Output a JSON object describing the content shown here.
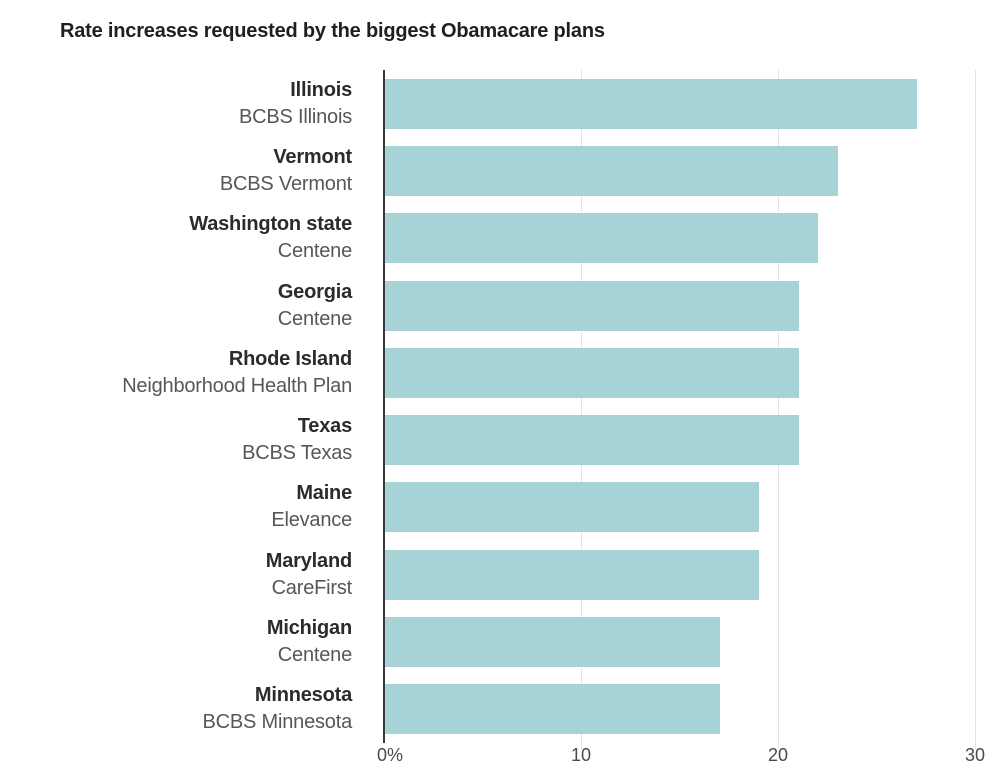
{
  "chart_data": {
    "type": "bar",
    "orientation": "horizontal",
    "title": "Rate increases requested by the biggest Obamacare plans",
    "categories": [
      {
        "state": "Illinois",
        "plan": "BCBS Illinois",
        "value": 27
      },
      {
        "state": "Vermont",
        "plan": "BCBS Vermont",
        "value": 23
      },
      {
        "state": "Washington state",
        "plan": "Centene",
        "value": 22
      },
      {
        "state": "Georgia",
        "plan": "Centene",
        "value": 21
      },
      {
        "state": "Rhode Island",
        "plan": "Neighborhood Health Plan",
        "value": 21
      },
      {
        "state": "Texas",
        "plan": "BCBS Texas",
        "value": 21
      },
      {
        "state": "Maine",
        "plan": "Elevance",
        "value": 19
      },
      {
        "state": "Maryland",
        "plan": "CareFirst",
        "value": 19
      },
      {
        "state": "Michigan",
        "plan": "Centene",
        "value": 17
      },
      {
        "state": "Minnesota",
        "plan": "BCBS Minnesota",
        "value": 17
      }
    ],
    "xlabel": "",
    "ylabel": "",
    "xlim": [
      0,
      30
    ],
    "x_axis": {
      "max": 30,
      "ticks": [
        {
          "value": 0,
          "label": "0%"
        },
        {
          "value": 10,
          "label": "10"
        },
        {
          "value": 20,
          "label": "20"
        },
        {
          "value": 30,
          "label": "30"
        }
      ]
    },
    "grid": "vertical light gridlines at 10, 20, 30; dark zero baseline",
    "legend": "none",
    "colors": {
      "bar": "#a8d3d6",
      "baseline": "#3a3a3a",
      "gridline": "#e4e4e4",
      "title": "#1f1f1f",
      "state_label": "#2b2b2b",
      "plan_label": "#575757",
      "axis_label": "#4a4a4a"
    }
  }
}
